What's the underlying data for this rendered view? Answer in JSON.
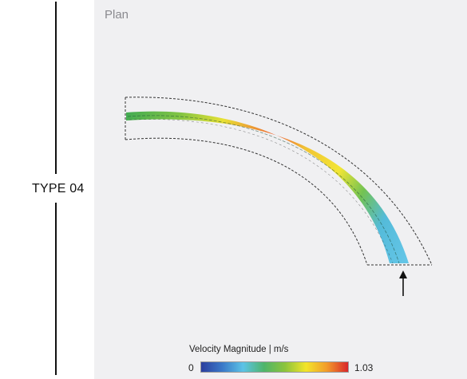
{
  "side_label": "TYPE 04",
  "panel": {
    "title": "Plan"
  },
  "legend": {
    "title": "Velocity Magnitude | m/s",
    "min": "0",
    "max": "1.03",
    "colors": [
      "#2c3f9e",
      "#3a78c8",
      "#5cc3e6",
      "#4fb56a",
      "#8cc43c",
      "#f3e52a",
      "#f29a2a",
      "#d9262a"
    ]
  },
  "colors": {
    "panel_background": "#f0f0f2",
    "outline": "#333333",
    "arrow": "#111111"
  },
  "icons": [
    "inlet-arrow-icon"
  ]
}
